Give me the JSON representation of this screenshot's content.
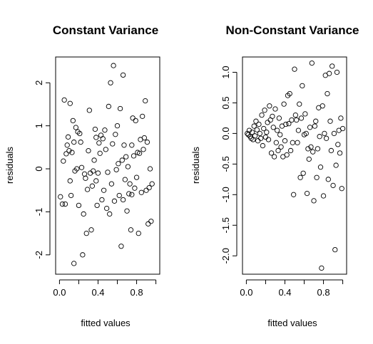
{
  "chart_data": [
    {
      "type": "scatter",
      "title": "Constant Variance",
      "xlabel": "fitted values",
      "ylabel": "residuals",
      "xlim": [
        -0.04,
        1.04
      ],
      "ylim": [
        -2.45,
        2.6
      ],
      "xticks": [
        "0.0",
        "0.4",
        "0.8"
      ],
      "xtick_values": [
        0.0,
        0.4,
        0.8
      ],
      "yticks": [
        "-2",
        "-1",
        "0",
        "1",
        "2"
      ],
      "ytick_values": [
        -2,
        -1,
        0,
        1,
        2
      ],
      "grid": false,
      "points": [
        [
          0.01,
          -0.65
        ],
        [
          0.03,
          -0.82
        ],
        [
          0.04,
          0.18
        ],
        [
          0.05,
          1.6
        ],
        [
          0.06,
          -0.82
        ],
        [
          0.07,
          0.35
        ],
        [
          0.08,
          0.55
        ],
        [
          0.09,
          0.74
        ],
        [
          0.1,
          0.42
        ],
        [
          0.11,
          1.52
        ],
        [
          0.11,
          -0.28
        ],
        [
          0.12,
          -0.62
        ],
        [
          0.13,
          0.38
        ],
        [
          0.14,
          1.12
        ],
        [
          0.15,
          -2.2
        ],
        [
          0.15,
          0.62
        ],
        [
          0.16,
          -0.05
        ],
        [
          0.17,
          0.96
        ],
        [
          0.18,
          0.0
        ],
        [
          0.19,
          0.86
        ],
        [
          0.2,
          -0.85
        ],
        [
          0.21,
          0.82
        ],
        [
          0.22,
          0.62
        ],
        [
          0.23,
          0.03
        ],
        [
          0.24,
          -2.0
        ],
        [
          0.25,
          -1.05
        ],
        [
          0.26,
          -0.12
        ],
        [
          0.27,
          -0.22
        ],
        [
          0.28,
          -1.5
        ],
        [
          0.29,
          -0.48
        ],
        [
          0.3,
          0.42
        ],
        [
          0.31,
          1.36
        ],
        [
          0.32,
          -0.1
        ],
        [
          0.33,
          -1.42
        ],
        [
          0.34,
          -0.4
        ],
        [
          0.35,
          -0.05
        ],
        [
          0.36,
          0.2
        ],
        [
          0.37,
          0.92
        ],
        [
          0.38,
          -0.28
        ],
        [
          0.38,
          0.73
        ],
        [
          0.39,
          -0.85
        ],
        [
          0.4,
          -0.1
        ],
        [
          0.41,
          0.6
        ],
        [
          0.42,
          0.36
        ],
        [
          0.43,
          0.78
        ],
        [
          0.44,
          -0.72
        ],
        [
          0.45,
          0.7
        ],
        [
          0.46,
          -0.5
        ],
        [
          0.47,
          0.9
        ],
        [
          0.48,
          0.45
        ],
        [
          0.49,
          -0.92
        ],
        [
          0.5,
          -0.08
        ],
        [
          0.51,
          1.45
        ],
        [
          0.52,
          -1.05
        ],
        [
          0.53,
          2.0
        ],
        [
          0.54,
          -0.35
        ],
        [
          0.55,
          0.58
        ],
        [
          0.56,
          2.4
        ],
        [
          0.57,
          -0.75
        ],
        [
          0.58,
          0.8
        ],
        [
          0.59,
          -0.02
        ],
        [
          0.6,
          1.0
        ],
        [
          0.61,
          0.12
        ],
        [
          0.62,
          -0.62
        ],
        [
          0.63,
          1.4
        ],
        [
          0.64,
          -1.8
        ],
        [
          0.65,
          0.2
        ],
        [
          0.66,
          -0.72
        ],
        [
          0.66,
          2.18
        ],
        [
          0.67,
          0.55
        ],
        [
          0.68,
          -0.25
        ],
        [
          0.69,
          0.28
        ],
        [
          0.7,
          -0.98
        ],
        [
          0.71,
          0.05
        ],
        [
          0.72,
          -0.58
        ],
        [
          0.73,
          -0.35
        ],
        [
          0.74,
          -1.42
        ],
        [
          0.75,
          0.55
        ],
        [
          0.75,
          -0.6
        ],
        [
          0.76,
          1.18
        ],
        [
          0.77,
          0.3
        ],
        [
          0.78,
          -0.45
        ],
        [
          0.79,
          1.12
        ],
        [
          0.8,
          -0.2
        ],
        [
          0.81,
          0.38
        ],
        [
          0.82,
          -1.5
        ],
        [
          0.83,
          0.36
        ],
        [
          0.84,
          0.68
        ],
        [
          0.85,
          -0.55
        ],
        [
          0.86,
          1.22
        ],
        [
          0.87,
          0.45
        ],
        [
          0.88,
          0.72
        ],
        [
          0.89,
          1.58
        ],
        [
          0.9,
          -0.5
        ],
        [
          0.91,
          0.62
        ],
        [
          0.92,
          -1.28
        ],
        [
          0.93,
          -0.44
        ],
        [
          0.94,
          0.0
        ],
        [
          0.95,
          -1.22
        ],
        [
          0.96,
          -0.35
        ]
      ]
    },
    {
      "type": "scatter",
      "title": "Non-Constant Variance",
      "xlabel": "fitted values",
      "ylabel": "residuals",
      "xlim": [
        -0.04,
        1.04
      ],
      "ylim": [
        -2.3,
        1.25
      ],
      "xticks": [
        "0.0",
        "0.4",
        "0.8"
      ],
      "xtick_values": [
        0.0,
        0.4,
        0.8
      ],
      "yticks": [
        "-2.0",
        "-1.5",
        "-1.0",
        "-0.5",
        "0.0",
        "0.5",
        "1.0"
      ],
      "ytick_values": [
        -2.0,
        -1.5,
        -1.0,
        -0.5,
        0.0,
        0.5,
        1.0
      ],
      "grid": false,
      "points": [
        [
          0.01,
          0.0
        ],
        [
          0.02,
          -0.02
        ],
        [
          0.03,
          0.05
        ],
        [
          0.04,
          -0.05
        ],
        [
          0.05,
          -0.08
        ],
        [
          0.06,
          0.02
        ],
        [
          0.07,
          -0.1
        ],
        [
          0.08,
          0.12
        ],
        [
          0.09,
          -0.04
        ],
        [
          0.1,
          0.2
        ],
        [
          0.11,
          0.06
        ],
        [
          0.12,
          -0.12
        ],
        [
          0.13,
          0.15
        ],
        [
          0.14,
          0.0
        ],
        [
          0.15,
          -0.08
        ],
        [
          0.16,
          0.3
        ],
        [
          0.17,
          -0.2
        ],
        [
          0.18,
          0.08
        ],
        [
          0.19,
          0.38
        ],
        [
          0.2,
          -0.06
        ],
        [
          0.21,
          0.02
        ],
        [
          0.22,
          0.18
        ],
        [
          0.23,
          -0.1
        ],
        [
          0.24,
          0.45
        ],
        [
          0.25,
          0.22
        ],
        [
          0.26,
          -0.32
        ],
        [
          0.27,
          0.28
        ],
        [
          0.28,
          0.1
        ],
        [
          0.29,
          -0.38
        ],
        [
          0.3,
          0.4
        ],
        [
          0.31,
          -0.15
        ],
        [
          0.32,
          0.05
        ],
        [
          0.33,
          -0.28
        ],
        [
          0.34,
          0.25
        ],
        [
          0.35,
          -0.02
        ],
        [
          0.36,
          -0.22
        ],
        [
          0.37,
          0.12
        ],
        [
          0.38,
          -0.38
        ],
        [
          0.39,
          0.48
        ],
        [
          0.4,
          -0.12
        ],
        [
          0.41,
          0.15
        ],
        [
          0.42,
          -0.35
        ],
        [
          0.43,
          0.62
        ],
        [
          0.44,
          0.16
        ],
        [
          0.45,
          0.65
        ],
        [
          0.46,
          -0.28
        ],
        [
          0.47,
          0.22
        ],
        [
          0.48,
          -0.15
        ],
        [
          0.49,
          -1.0
        ],
        [
          0.5,
          1.05
        ],
        [
          0.51,
          0.3
        ],
        [
          0.52,
          0.22
        ],
        [
          0.53,
          -0.15
        ],
        [
          0.54,
          0.05
        ],
        [
          0.55,
          0.48
        ],
        [
          0.56,
          -0.72
        ],
        [
          0.57,
          0.25
        ],
        [
          0.58,
          0.78
        ],
        [
          0.59,
          -0.65
        ],
        [
          0.6,
          -0.02
        ],
        [
          0.61,
          0.32
        ],
        [
          0.62,
          0.0
        ],
        [
          0.63,
          -0.98
        ],
        [
          0.64,
          -0.25
        ],
        [
          0.65,
          -0.42
        ],
        [
          0.66,
          0.1
        ],
        [
          0.67,
          -0.22
        ],
        [
          0.68,
          1.15
        ],
        [
          0.69,
          -0.3
        ],
        [
          0.7,
          -1.1
        ],
        [
          0.71,
          0.12
        ],
        [
          0.72,
          0.2
        ],
        [
          0.73,
          -0.72
        ],
        [
          0.74,
          -0.25
        ],
        [
          0.75,
          0.42
        ],
        [
          0.76,
          -0.05
        ],
        [
          0.77,
          -0.55
        ],
        [
          0.78,
          -2.2
        ],
        [
          0.79,
          0.45
        ],
        [
          0.8,
          -1.02
        ],
        [
          0.81,
          0.0
        ],
        [
          0.82,
          0.95
        ],
        [
          0.83,
          -0.08
        ],
        [
          0.84,
          0.65
        ],
        [
          0.85,
          -0.75
        ],
        [
          0.86,
          0.98
        ],
        [
          0.87,
          0.2
        ],
        [
          0.88,
          -0.28
        ],
        [
          0.89,
          1.1
        ],
        [
          0.9,
          -0.85
        ],
        [
          0.91,
          0.0
        ],
        [
          0.92,
          -1.9
        ],
        [
          0.93,
          -0.52
        ],
        [
          0.94,
          1.0
        ],
        [
          0.95,
          -0.18
        ],
        [
          0.96,
          0.05
        ],
        [
          0.97,
          -0.32
        ],
        [
          0.98,
          0.25
        ],
        [
          0.99,
          -0.9
        ],
        [
          1.0,
          0.08
        ]
      ]
    }
  ]
}
